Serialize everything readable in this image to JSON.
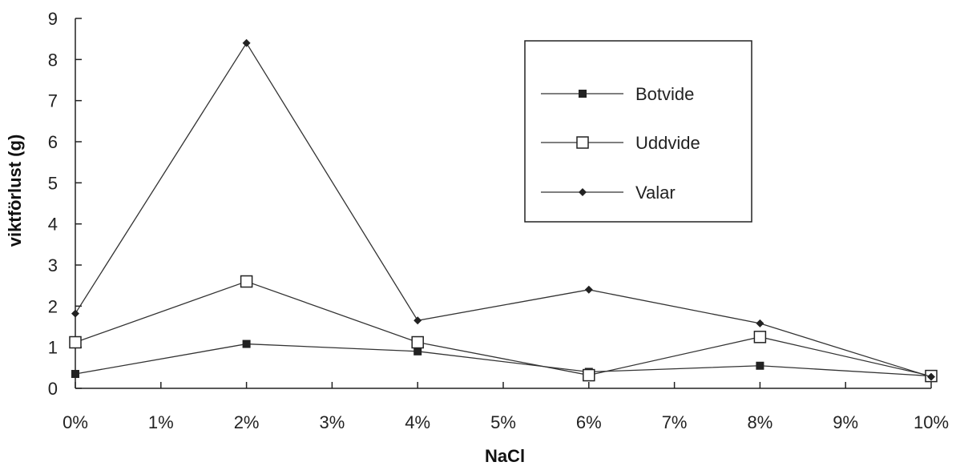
{
  "chart_data": {
    "type": "line",
    "xlabel": "NaCl",
    "ylabel": "viktförlust (g)",
    "x": [
      0,
      2,
      4,
      6,
      8,
      10
    ],
    "x_ticks": [
      "0%",
      "1%",
      "2%",
      "3%",
      "4%",
      "5%",
      "6%",
      "7%",
      "8%",
      "9%",
      "10%"
    ],
    "xlim": [
      0,
      10
    ],
    "y_ticks": [
      "0",
      "1",
      "2",
      "3",
      "4",
      "5",
      "6",
      "7",
      "8",
      "9"
    ],
    "ylim": [
      0,
      9
    ],
    "grid": false,
    "legend_position": "top-right",
    "series": [
      {
        "name": "Botvide",
        "marker": "filled-square",
        "values": [
          0.35,
          1.08,
          0.9,
          0.4,
          0.55,
          0.3
        ]
      },
      {
        "name": "Uddvide",
        "marker": "open-square",
        "values": [
          1.12,
          2.6,
          1.12,
          0.32,
          1.25,
          0.3
        ]
      },
      {
        "name": "Valar",
        "marker": "diamond",
        "values": [
          1.82,
          8.4,
          1.65,
          2.4,
          1.58,
          0.28
        ]
      }
    ],
    "colors": {
      "line": "#333333",
      "axis": "#222222"
    }
  }
}
